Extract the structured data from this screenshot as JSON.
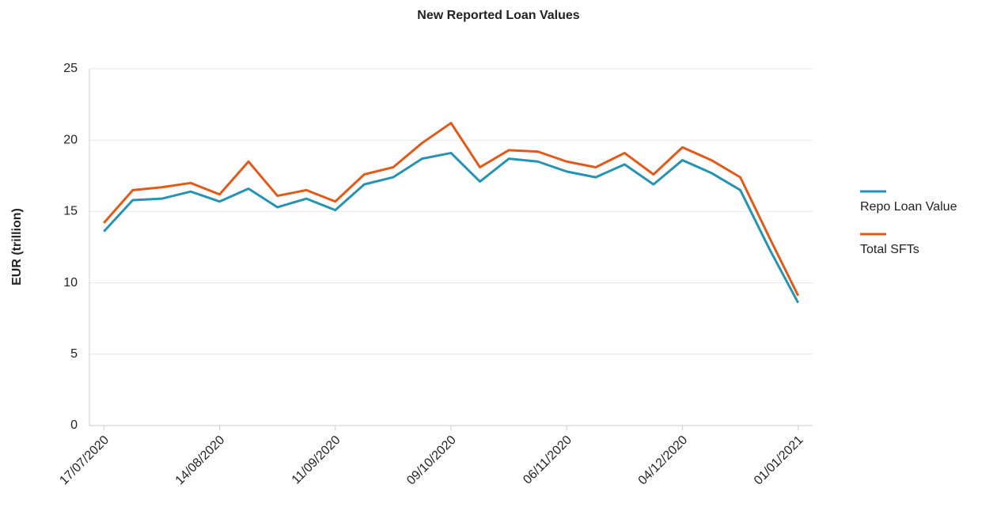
{
  "chart_data": {
    "type": "line",
    "title": "New Reported Loan Values",
    "y_label": "EUR (trillion)",
    "categories": [
      "17/07/2020",
      null,
      null,
      null,
      "14/08/2020",
      null,
      null,
      null,
      "11/09/2020",
      null,
      null,
      null,
      "09/10/2020",
      null,
      null,
      null,
      "06/11/2020",
      null,
      null,
      null,
      "04/12/2020",
      null,
      null,
      null,
      "01/01/2021"
    ],
    "series": [
      {
        "name": "Repo Loan Value",
        "color": "#2693b2",
        "values": [
          13.6,
          15.8,
          15.9,
          16.4,
          15.7,
          16.6,
          15.3,
          15.9,
          15.1,
          16.9,
          17.4,
          18.7,
          19.1,
          17.1,
          18.7,
          18.5,
          17.8,
          17.4,
          18.3,
          16.9,
          18.6,
          17.7,
          16.5,
          12.4,
          8.6
        ]
      },
      {
        "name": "Total SFTs",
        "color": "#e05a1a",
        "values": [
          14.2,
          16.5,
          16.7,
          17.0,
          16.2,
          18.5,
          16.1,
          16.5,
          15.7,
          17.6,
          18.1,
          19.8,
          21.2,
          18.1,
          19.3,
          19.2,
          18.5,
          18.1,
          19.1,
          17.6,
          19.5,
          18.6,
          17.4,
          13.2,
          9.1
        ]
      }
    ],
    "ylim": [
      0,
      25
    ],
    "yticks": [
      0,
      5,
      10,
      15,
      20,
      25
    ],
    "grid": true,
    "legend": "right"
  }
}
